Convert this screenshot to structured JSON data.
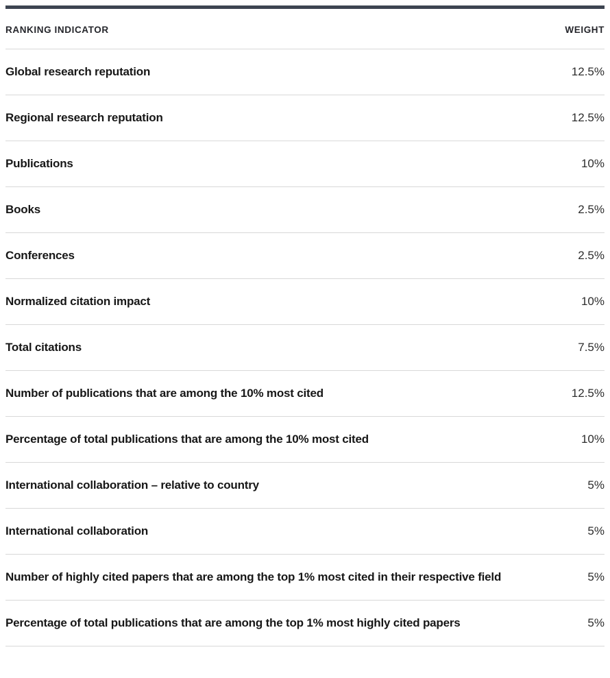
{
  "table": {
    "accent_color": "#3d4451",
    "divider_color": "#d8d8d8",
    "header": {
      "indicator_label": "RANKING INDICATOR",
      "weight_label": "WEIGHT"
    },
    "rows": [
      {
        "label": "Global research reputation",
        "weight": "12.5%"
      },
      {
        "label": "Regional research reputation",
        "weight": "12.5%"
      },
      {
        "label": "Publications",
        "weight": "10%"
      },
      {
        "label": "Books",
        "weight": "2.5%"
      },
      {
        "label": "Conferences",
        "weight": "2.5%"
      },
      {
        "label": "Normalized citation impact",
        "weight": "10%"
      },
      {
        "label": "Total citations",
        "weight": "7.5%"
      },
      {
        "label": "Number of publications that are among the 10% most cited",
        "weight": "12.5%"
      },
      {
        "label": "Percentage of total publications that are among the 10% most cited",
        "weight": "10%"
      },
      {
        "label": "International collaboration – relative to country",
        "weight": "5%"
      },
      {
        "label": "International collaboration",
        "weight": "5%"
      },
      {
        "label": "Number of highly cited papers that are among the top 1% most cited in their respective field",
        "weight": "5%"
      },
      {
        "label": "Percentage of total publications that are among the top 1% most highly cited papers",
        "weight": "5%"
      }
    ]
  }
}
